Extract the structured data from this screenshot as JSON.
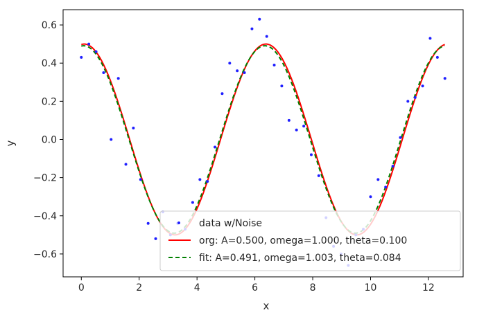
{
  "chart_data": {
    "type": "scatter",
    "xlabel": "x",
    "ylabel": "y",
    "xlim": [
      -0.63,
      13.2
    ],
    "ylim": [
      -0.72,
      0.68
    ],
    "x_ticks": [
      {
        "value": 0,
        "label": "0"
      },
      {
        "value": 2,
        "label": "2"
      },
      {
        "value": 4,
        "label": "4"
      },
      {
        "value": 6,
        "label": "6"
      },
      {
        "value": 8,
        "label": "8"
      },
      {
        "value": 10,
        "label": "10"
      },
      {
        "value": 12,
        "label": "12"
      }
    ],
    "y_ticks": [
      {
        "value": -0.6,
        "label": "−0.6"
      },
      {
        "value": -0.4,
        "label": "−0.4"
      },
      {
        "value": -0.2,
        "label": "−0.2"
      },
      {
        "value": 0.0,
        "label": "0.0"
      },
      {
        "value": 0.2,
        "label": "0.2"
      },
      {
        "value": 0.4,
        "label": "0.4"
      },
      {
        "value": 0.6,
        "label": "0.6"
      }
    ],
    "grid": false,
    "legend_position": "lower-right",
    "series": [
      {
        "name": "data w/Noise",
        "kind": "scatter",
        "color": "#1f1fff",
        "x": [
          0.0,
          0.26,
          0.51,
          0.77,
          1.03,
          1.28,
          1.54,
          1.8,
          2.05,
          2.31,
          2.57,
          2.82,
          3.08,
          3.33,
          3.59,
          3.85,
          4.1,
          4.36,
          4.62,
          4.87,
          5.13,
          5.39,
          5.64,
          5.9,
          6.16,
          6.41,
          6.67,
          6.93,
          7.18,
          7.44,
          7.69,
          7.95,
          8.21,
          8.46,
          8.72,
          8.98,
          9.23,
          9.49,
          9.75,
          10.0,
          10.26,
          10.52,
          10.77,
          11.03,
          11.29,
          11.54,
          11.8,
          12.06,
          12.31,
          12.57
        ],
        "y": [
          0.43,
          0.5,
          0.46,
          0.35,
          0.0,
          0.32,
          -0.13,
          0.06,
          -0.21,
          -0.44,
          -0.52,
          -0.38,
          -0.5,
          -0.44,
          -0.47,
          -0.33,
          -0.21,
          -0.22,
          -0.04,
          0.24,
          0.4,
          0.36,
          0.35,
          0.58,
          0.63,
          0.54,
          0.39,
          0.28,
          0.1,
          0.05,
          0.07,
          -0.08,
          -0.19,
          -0.41,
          -0.56,
          -0.6,
          -0.66,
          -0.5,
          -0.47,
          -0.3,
          -0.21,
          -0.25,
          -0.14,
          0.01,
          0.2,
          0.22,
          0.28,
          0.53,
          0.43,
          0.32
        ]
      },
      {
        "name": "org: A=0.500, omega=1.000, theta=0.100",
        "kind": "line",
        "color": "#ff0000",
        "dash": "solid",
        "A": 0.5,
        "omega": 1.0,
        "theta": 0.1
      },
      {
        "name": "fit: A=0.491, omega=1.003, theta=0.084",
        "kind": "line",
        "color": "#008000",
        "dash": "dashed",
        "A": 0.491,
        "omega": 1.003,
        "theta": 0.084
      }
    ]
  }
}
